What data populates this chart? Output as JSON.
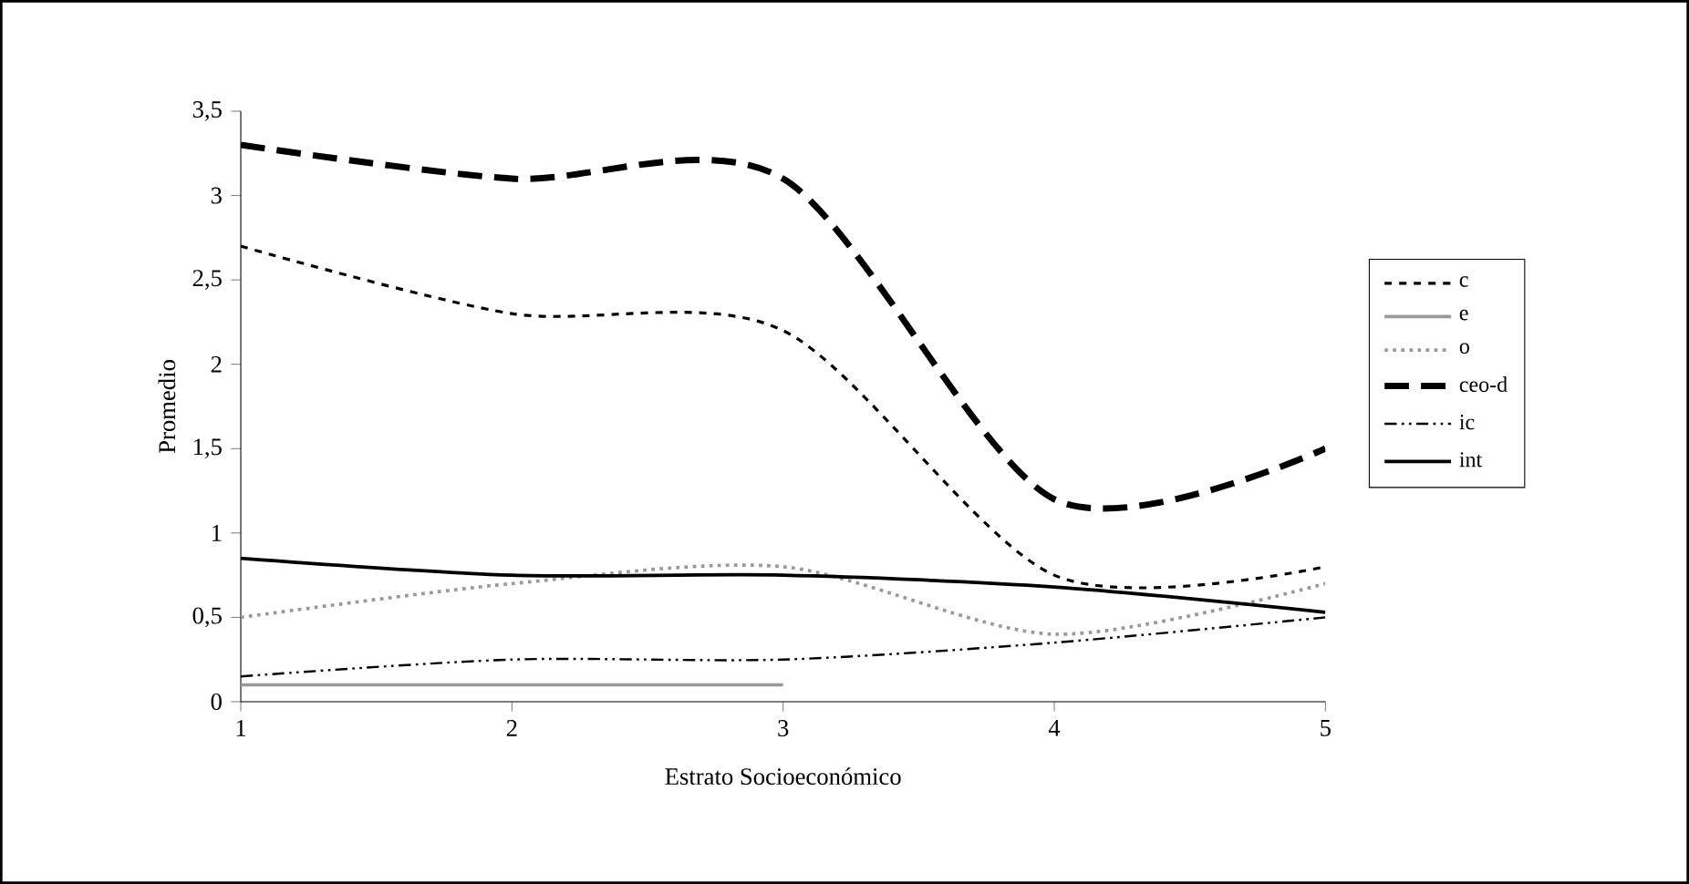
{
  "chart_data": {
    "type": "line",
    "xlabel": "Estrato Socioeconómico",
    "ylabel": "Promedio",
    "x": [
      1,
      2,
      3,
      4,
      5
    ],
    "xlim": [
      1,
      5
    ],
    "xticks": [
      1,
      2,
      3,
      4,
      5
    ],
    "ylim": [
      0,
      3.5
    ],
    "yticks": [
      0,
      {
        "value": 0.5,
        "label": "0,5"
      },
      1,
      {
        "value": 1.5,
        "label": "1,5"
      },
      2,
      {
        "value": 2.5,
        "label": "2,5"
      },
      3,
      {
        "value": 3.5,
        "label": "3,5"
      }
    ],
    "legend": "right",
    "grid": false,
    "marker": "none",
    "series": [
      {
        "name": "c",
        "color": "#000000",
        "line_style": "dashed",
        "values": [
          2.7,
          2.3,
          2.2,
          0.75,
          0.8
        ]
      },
      {
        "name": "e",
        "color": "#999999",
        "line_style": "solid",
        "values": [
          0.1,
          0.1,
          0.1,
          null,
          null
        ]
      },
      {
        "name": "o",
        "color": "#999999",
        "line_style": "dotted",
        "values": [
          0.5,
          0.7,
          0.8,
          0.4,
          0.7
        ]
      },
      {
        "name": "ceo-d",
        "color": "#000000",
        "line_style": "longdashed",
        "values": [
          3.3,
          3.1,
          3.1,
          1.2,
          1.5
        ]
      },
      {
        "name": "ic",
        "color": "#000000",
        "line_style": "dashdotdotted",
        "values": [
          0.15,
          0.25,
          0.25,
          0.35,
          0.5
        ]
      },
      {
        "name": "int",
        "color": "#000000",
        "line_style": "solid",
        "values": [
          0.85,
          0.75,
          0.75,
          0.68,
          0.53
        ]
      }
    ]
  }
}
